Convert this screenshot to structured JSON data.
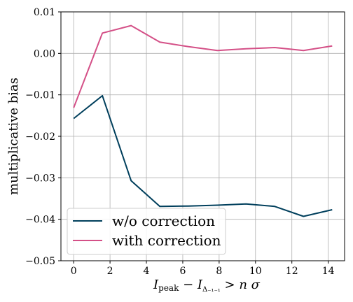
{
  "chart_data": {
    "type": "line",
    "xlabel": "I_peak − I_Δ₋₁₋₁ > n σ",
    "ylabel": "multiplicative bias",
    "xlim": [
      -0.7,
      14.9
    ],
    "ylim": [
      -0.05,
      0.01
    ],
    "xticks": [
      "0",
      "2",
      "4",
      "6",
      "8",
      "10",
      "12",
      "14"
    ],
    "yticks": [
      "0.01",
      "0.00",
      "−0.01",
      "−0.02",
      "−0.03",
      "−0.04",
      "−0.05"
    ],
    "grid": true,
    "legend_position": "lower-left",
    "series": [
      {
        "name": "w/o correction",
        "color": "#003f5c",
        "x": [
          0,
          1.58,
          3.16,
          4.74,
          6.32,
          7.9,
          9.48,
          11.06,
          12.64,
          14.22
        ],
        "y": [
          -0.0157,
          -0.0102,
          -0.0307,
          -0.0369,
          -0.0368,
          -0.0366,
          -0.0363,
          -0.0369,
          -0.0393,
          -0.0377
        ]
      },
      {
        "name": "with correction",
        "color": "#d45087",
        "x": [
          0,
          1.58,
          3.16,
          4.74,
          6.32,
          7.9,
          9.48,
          11.06,
          12.64,
          14.22
        ],
        "y": [
          -0.0131,
          0.0049,
          0.0067,
          0.0027,
          0.0016,
          0.0007,
          0.0011,
          0.0014,
          0.0007,
          0.0018
        ]
      }
    ]
  }
}
